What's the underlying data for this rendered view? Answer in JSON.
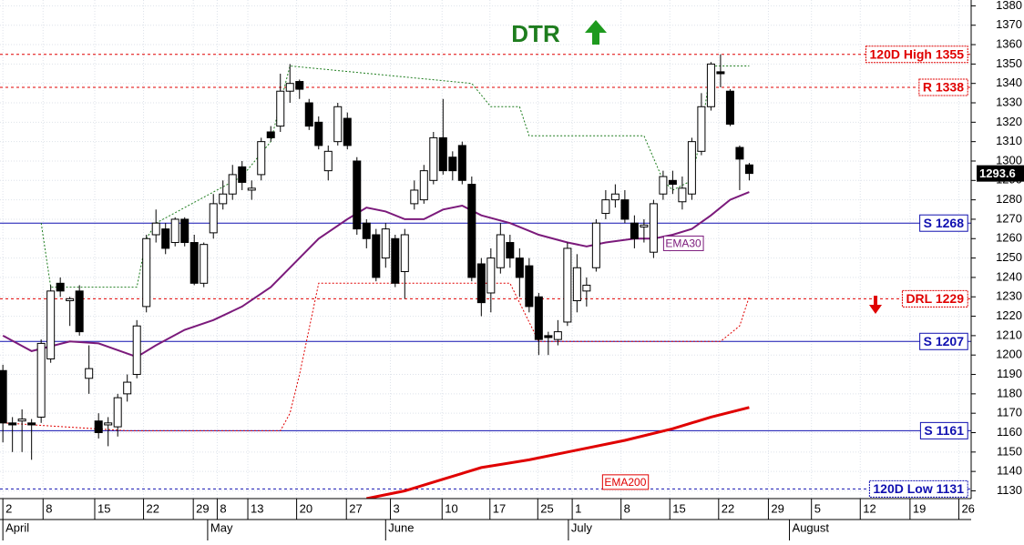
{
  "chart_data": {
    "type": "candlestick",
    "title": "DTR",
    "title_color": "#1e7d1e",
    "x": [
      0,
      1,
      2,
      3,
      4,
      5,
      6,
      7,
      8,
      9,
      10,
      11,
      12,
      13,
      14,
      15,
      16,
      17,
      18,
      19,
      20,
      21,
      22,
      23,
      24,
      25,
      26,
      27,
      28,
      29,
      30,
      31,
      32,
      33,
      34,
      35,
      36,
      37,
      38,
      39,
      40,
      41,
      42,
      43,
      44,
      45,
      46,
      47,
      48,
      49,
      50,
      51,
      52,
      53,
      54,
      55,
      56,
      57,
      58,
      59,
      60,
      61,
      62,
      63,
      64,
      65,
      66,
      67,
      68,
      69,
      70,
      71,
      72,
      73,
      74,
      75,
      76,
      77,
      78
    ],
    "open": [
      1192,
      1165,
      1166,
      1165,
      1168,
      1198,
      1237,
      1228,
      1233,
      1188,
      1166,
      1164,
      1163,
      1180,
      1190,
      1225,
      1262,
      1265,
      1258,
      1270,
      1258,
      1237,
      1263,
      1278,
      1283,
      1297,
      1285,
      1293,
      1315,
      1318,
      1336,
      1341,
      1330,
      1320,
      1295,
      1310,
      1322,
      1300,
      1268,
      1262,
      1250,
      1260,
      1243,
      1278,
      1280,
      1290,
      1312,
      1302,
      1308,
      1288,
      1247,
      1232,
      1245,
      1258,
      1250,
      1246,
      1230,
      1210,
      1208,
      1217,
      1228,
      1233,
      1245,
      1273,
      1280,
      1280,
      1268,
      1266,
      1253,
      1283,
      1290,
      1279,
      1283,
      1305,
      1328,
      1346,
      1336,
      1307,
      1298
    ],
    "high": [
      1195,
      1168,
      1172,
      1167,
      1208,
      1236,
      1240,
      1230,
      1236,
      1205,
      1170,
      1168,
      1180,
      1190,
      1218,
      1262,
      1275,
      1268,
      1271,
      1271,
      1262,
      1258,
      1283,
      1290,
      1298,
      1300,
      1290,
      1312,
      1318,
      1345,
      1350,
      1342,
      1332,
      1323,
      1308,
      1330,
      1325,
      1302,
      1270,
      1265,
      1268,
      1262,
      1265,
      1290,
      1298,
      1315,
      1332,
      1305,
      1310,
      1292,
      1250,
      1255,
      1268,
      1262,
      1255,
      1250,
      1232,
      1212,
      1218,
      1258,
      1252,
      1240,
      1270,
      1285,
      1288,
      1285,
      1272,
      1270,
      1280,
      1295,
      1295,
      1292,
      1312,
      1335,
      1351,
      1355,
      1337,
      1308,
      1299
    ],
    "low": [
      1155,
      1150,
      1150,
      1146,
      1165,
      1196,
      1230,
      1215,
      1210,
      1180,
      1157,
      1153,
      1158,
      1176,
      1188,
      1222,
      1258,
      1252,
      1256,
      1256,
      1236,
      1235,
      1260,
      1275,
      1280,
      1285,
      1280,
      1290,
      1310,
      1315,
      1330,
      1332,
      1316,
      1306,
      1290,
      1308,
      1306,
      1262,
      1255,
      1238,
      1245,
      1235,
      1229,
      1275,
      1278,
      1288,
      1293,
      1290,
      1288,
      1238,
      1220,
      1222,
      1242,
      1245,
      1230,
      1222,
      1200,
      1200,
      1205,
      1215,
      1222,
      1225,
      1243,
      1270,
      1276,
      1268,
      1255,
      1258,
      1250,
      1280,
      1283,
      1275,
      1280,
      1303,
      1326,
      1338,
      1318,
      1285,
      1290
    ],
    "close": [
      1165,
      1164,
      1167,
      1164,
      1206,
      1233,
      1233,
      1229,
      1212,
      1193,
      1160,
      1165,
      1178,
      1186,
      1215,
      1260,
      1268,
      1255,
      1270,
      1258,
      1237,
      1257,
      1278,
      1283,
      1293,
      1289,
      1286,
      1310,
      1312,
      1336,
      1340,
      1337,
      1318,
      1308,
      1305,
      1328,
      1308,
      1265,
      1260,
      1240,
      1265,
      1237,
      1262,
      1285,
      1295,
      1312,
      1295,
      1295,
      1290,
      1240,
      1227,
      1250,
      1262,
      1250,
      1240,
      1225,
      1208,
      1209,
      1212,
      1255,
      1245,
      1236,
      1268,
      1280,
      1283,
      1270,
      1260,
      1267,
      1278,
      1292,
      1288,
      1286,
      1310,
      1328,
      1350,
      1345,
      1319,
      1301,
      1293.6
    ],
    "up_color": "#ffffff",
    "down_color": "#000000",
    "last_price": 1293.6,
    "lines": [
      {
        "name": "EMA30",
        "color": "#7b1a7b",
        "width": 2,
        "dash": "none",
        "x": [
          0,
          3,
          7,
          10,
          14,
          16,
          19,
          22,
          25,
          28,
          31,
          33,
          36,
          38,
          40,
          42,
          44,
          46,
          48,
          50,
          53,
          56,
          59,
          61,
          63,
          66,
          68,
          70,
          72,
          74,
          76,
          78
        ],
        "values": [
          1210,
          1202,
          1207,
          1206,
          1199,
          1205,
          1213,
          1218,
          1225,
          1235,
          1250,
          1260,
          1270,
          1276,
          1274,
          1270,
          1270,
          1275,
          1277,
          1272,
          1268,
          1262,
          1258,
          1256,
          1258,
          1260,
          1260,
          1262,
          1265,
          1272,
          1280,
          1284
        ]
      },
      {
        "name": "EMA200",
        "color": "#e00000",
        "width": 3,
        "dash": "none",
        "x": [
          38,
          42,
          46,
          50,
          55,
          60,
          65,
          70,
          74,
          78
        ],
        "values": [
          1126,
          1130,
          1136,
          1142,
          1146,
          1151,
          1156,
          1162,
          1168,
          1173
        ]
      },
      {
        "color": "#1e7d1e",
        "width": 1,
        "dash": "2,2",
        "x": [
          4,
          5,
          14,
          15,
          16,
          25,
          28,
          29,
          30,
          49,
          51,
          54,
          55,
          67,
          69,
          70,
          72,
          73,
          74,
          78
        ],
        "values": [
          1268,
          1235,
          1235,
          1260,
          1268,
          1292,
          1310,
          1330,
          1349,
          1340,
          1328,
          1328,
          1313,
          1313,
          1290,
          1285,
          1290,
          1315,
          1349,
          1349
        ]
      },
      {
        "color": "#e00000",
        "width": 1,
        "dash": "2,2",
        "x": [
          0,
          13,
          29,
          30,
          31,
          33,
          36,
          53,
          56,
          75,
          77,
          78
        ],
        "values": [
          1165,
          1161,
          1161,
          1170,
          1190,
          1237,
          1237,
          1237,
          1207,
          1207,
          1215,
          1230
        ]
      }
    ],
    "levels": [
      {
        "value": 1355,
        "label": "120D High 1355",
        "color": "#e00000",
        "dash": "3,3"
      },
      {
        "value": 1338,
        "label": "R 1338",
        "color": "#e00000",
        "dash": "3,3"
      },
      {
        "value": 1268,
        "label": "S 1268",
        "color": "#1010b0",
        "dash": "none"
      },
      {
        "value": 1229,
        "label": "DRL 1229",
        "color": "#e00000",
        "dash": "3,3"
      },
      {
        "value": 1207,
        "label": "S 1207",
        "color": "#1010b0",
        "dash": "none"
      },
      {
        "value": 1161,
        "label": "S 1161",
        "color": "#1010b0",
        "dash": "none"
      },
      {
        "value": 1131,
        "label": "120D Low 1131",
        "color": "#1010b0",
        "dash": "3,3"
      }
    ],
    "xlim": [
      -0.3,
      101
    ],
    "xticks": [
      {
        "value": 0,
        "label": "2"
      },
      {
        "value": 4.2,
        "label": "8"
      },
      {
        "value": 9.6,
        "label": "15"
      },
      {
        "value": 14.7,
        "label": "22"
      },
      {
        "value": 19.9,
        "label": "29"
      },
      {
        "value": 22.4,
        "label": "8"
      },
      {
        "value": 25.6,
        "label": "13"
      },
      {
        "value": 30.7,
        "label": "20"
      },
      {
        "value": 35.9,
        "label": "27"
      },
      {
        "value": 40.5,
        "label": "3"
      },
      {
        "value": 45.9,
        "label": "10"
      },
      {
        "value": 50.9,
        "label": "17"
      },
      {
        "value": 55.9,
        "label": "25"
      },
      {
        "value": 59.5,
        "label": "1"
      },
      {
        "value": 64.6,
        "label": "8"
      },
      {
        "value": 69.7,
        "label": "15"
      },
      {
        "value": 74.8,
        "label": "22"
      },
      {
        "value": 80,
        "label": "29"
      },
      {
        "value": 84.5,
        "label": "5"
      },
      {
        "value": 89.6,
        "label": "12"
      },
      {
        "value": 94.8,
        "label": "19"
      },
      {
        "value": 99.9,
        "label": "26"
      }
    ],
    "months": [
      {
        "value": 0,
        "label": "April"
      },
      {
        "value": 21.4,
        "label": "May"
      },
      {
        "value": 40,
        "label": "June"
      },
      {
        "value": 59.1,
        "label": "July"
      },
      {
        "value": 82.2,
        "label": "August"
      }
    ],
    "ylim": [
      1126,
      1383
    ],
    "yticks": [
      1130,
      1140,
      1150,
      1160,
      1170,
      1180,
      1190,
      1200,
      1210,
      1220,
      1230,
      1240,
      1250,
      1260,
      1270,
      1280,
      1290,
      1300,
      1310,
      1320,
      1330,
      1340,
      1350,
      1360,
      1370,
      1380
    ],
    "grid": true
  }
}
